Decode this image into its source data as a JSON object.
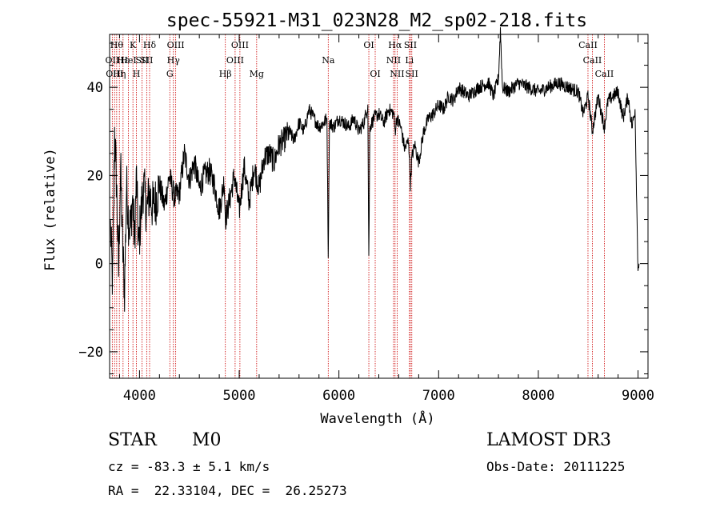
{
  "chart_data": {
    "type": "line",
    "title": "spec-55921-M31_023N28_M2_sp02-218.fits",
    "xlabel": "Wavelength (Å)",
    "ylabel": "Flux (relative)",
    "xlim": [
      3700,
      9100
    ],
    "ylim": [
      -26,
      52
    ],
    "xticks": [
      4000,
      5000,
      6000,
      7000,
      8000,
      9000
    ],
    "yticks": [
      -20,
      0,
      20,
      40
    ],
    "grid": false,
    "series": [
      {
        "name": "flux",
        "x": [
          3710,
          3730,
          3750,
          3770,
          3790,
          3810,
          3830,
          3850,
          3870,
          3890,
          3910,
          3930,
          3950,
          3970,
          3990,
          4010,
          4040,
          4070,
          4100,
          4130,
          4160,
          4200,
          4250,
          4300,
          4350,
          4400,
          4450,
          4500,
          4550,
          4600,
          4650,
          4700,
          4750,
          4800,
          4850,
          4861,
          4900,
          4950,
          5000,
          5050,
          5100,
          5150,
          5200,
          5250,
          5300,
          5350,
          5400,
          5450,
          5500,
          5550,
          5600,
          5650,
          5700,
          5750,
          5800,
          5850,
          5880,
          5893,
          5905,
          5950,
          6000,
          6050,
          6100,
          6150,
          6200,
          6250,
          6290,
          6300,
          6310,
          6350,
          6400,
          6450,
          6500,
          6550,
          6563,
          6580,
          6620,
          6660,
          6700,
          6717,
          6731,
          6760,
          6800,
          6850,
          6900,
          6950,
          7000,
          7050,
          7100,
          7150,
          7200,
          7250,
          7300,
          7400,
          7500,
          7550,
          7600,
          7620,
          7640,
          7700,
          7800,
          7900,
          8000,
          8100,
          8200,
          8300,
          8400,
          8450,
          8500,
          8542,
          8600,
          8662,
          8700,
          8800,
          8850,
          8900,
          8940,
          8970,
          8990,
          9000,
          9010
        ],
        "y": [
          8,
          -5,
          30,
          18,
          -2,
          22,
          4,
          -6,
          18,
          10,
          8,
          15,
          5,
          20,
          3,
          10,
          18,
          12,
          16,
          13,
          14,
          18,
          13,
          20,
          15,
          16,
          25,
          19,
          23,
          17,
          20,
          21,
          18,
          12,
          19,
          10,
          14,
          20,
          12,
          22,
          14,
          22,
          17,
          24,
          25,
          23,
          27,
          28,
          30,
          28,
          32,
          30,
          35,
          33,
          31,
          32,
          33,
          2,
          32,
          31,
          33,
          32,
          31,
          33,
          30,
          32,
          36,
          1,
          31,
          33,
          34,
          32,
          35,
          34,
          30,
          33,
          31,
          26,
          28,
          18,
          24,
          27,
          23,
          30,
          33,
          34,
          36,
          35,
          38,
          37,
          40,
          39,
          38,
          40,
          41,
          38,
          42,
          53,
          40,
          39,
          41,
          40,
          39,
          40,
          41,
          40,
          39,
          34,
          38,
          30,
          38,
          31,
          37,
          39,
          33,
          38,
          31,
          35,
          10,
          -1,
          0
        ]
      }
    ],
    "lines": [
      {
        "w": 3727,
        "label": "OII",
        "row": 1
      },
      {
        "w": 3750,
        "label": "OIII",
        "row": 2
      },
      {
        "w": 3771,
        "label": "Hθ",
        "row": 0
      },
      {
        "w": 3798,
        "label": "Hη",
        "row": 2
      },
      {
        "w": 3835,
        "label": "Hε",
        "row": 1
      },
      {
        "w": 3889,
        "label": "HeI",
        "row": 1
      },
      {
        "w": 3934,
        "label": "K",
        "row": 0
      },
      {
        "w": 3969,
        "label": "H",
        "row": 2
      },
      {
        "w": 4026,
        "label": "SII",
        "row": 1
      },
      {
        "w": 4101,
        "label": "Hδ",
        "row": 0
      },
      {
        "w": 4072,
        "label": "SII",
        "row": 1
      },
      {
        "w": 4304,
        "label": "G",
        "row": 2
      },
      {
        "w": 4340,
        "label": "Hγ",
        "row": 1
      },
      {
        "w": 4363,
        "label": "OIII",
        "row": 0
      },
      {
        "w": 4861,
        "label": "Hβ",
        "row": 2
      },
      {
        "w": 4959,
        "label": "OIII",
        "row": 1
      },
      {
        "w": 5007,
        "label": "OIII",
        "row": 0
      },
      {
        "w": 5175,
        "label": "Mg",
        "row": 2
      },
      {
        "w": 5893,
        "label": "Na",
        "row": 1
      },
      {
        "w": 6300,
        "label": "OI",
        "row": 0
      },
      {
        "w": 6364,
        "label": "OI",
        "row": 2
      },
      {
        "w": 6548,
        "label": "NII",
        "row": 1
      },
      {
        "w": 6563,
        "label": "Hα",
        "row": 0
      },
      {
        "w": 6584,
        "label": "NII",
        "row": 2
      },
      {
        "w": 6707,
        "label": "Li",
        "row": 1
      },
      {
        "w": 6717,
        "label": "SII",
        "row": 0
      },
      {
        "w": 6731,
        "label": "SII",
        "row": 2
      },
      {
        "w": 8498,
        "label": "CaII",
        "row": 0
      },
      {
        "w": 8542,
        "label": "CaII",
        "row": 1
      },
      {
        "w": 8662,
        "label": "CaII",
        "row": 2
      }
    ]
  },
  "info": {
    "class": "STAR",
    "subclass": "M0",
    "survey": "LAMOST DR3",
    "cz": "cz = -83.3 ± 5.1 km/s",
    "obs_date": "Obs-Date: 20111225",
    "coords": "RA =  22.33104, DEC =  26.25273"
  },
  "colors": {
    "axis": "#000000",
    "line_marker": "#cc0000",
    "spectrum": "#000000"
  }
}
